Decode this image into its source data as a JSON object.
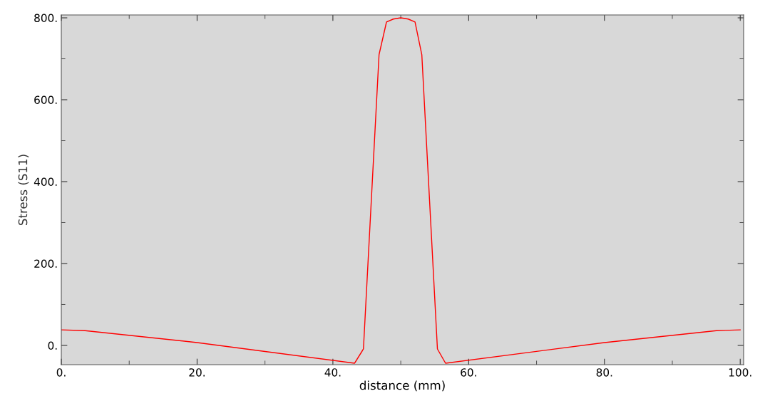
{
  "chart_data": {
    "type": "line",
    "xlabel": "distance (mm)",
    "ylabel": "Stress (S11)",
    "x": [
      0,
      3.5,
      20,
      43.2,
      44.5,
      46.8,
      47.9,
      48.9,
      50,
      51.1,
      52.1,
      53.1,
      55.4,
      56.6,
      80,
      96.5,
      100
    ],
    "series": [
      {
        "color": "#ff0000",
        "values": [
          38,
          36,
          7,
          -43.5,
          -8.7,
          710,
          790,
          797,
          800,
          797,
          790,
          710,
          -8.7,
          -43.5,
          7,
          36,
          38
        ]
      }
    ],
    "xlim": [
      0,
      100.5
    ],
    "ylim": [
      -47,
      807
    ],
    "xticks": [
      {
        "value": 0,
        "label": "0."
      },
      {
        "value": 20,
        "label": "20."
      },
      {
        "value": 40,
        "label": "40."
      },
      {
        "value": 60,
        "label": "60."
      },
      {
        "value": 80,
        "label": "80."
      },
      {
        "value": 100,
        "label": "100."
      }
    ],
    "yticks": [
      {
        "value": 0,
        "label": "0."
      },
      {
        "value": 200,
        "label": "200."
      },
      {
        "value": 400,
        "label": "400."
      },
      {
        "value": 600,
        "label": "600."
      },
      {
        "value": 800,
        "label": "800."
      }
    ],
    "grid": false,
    "legend": false,
    "marker": "none",
    "line_style": "solid"
  }
}
